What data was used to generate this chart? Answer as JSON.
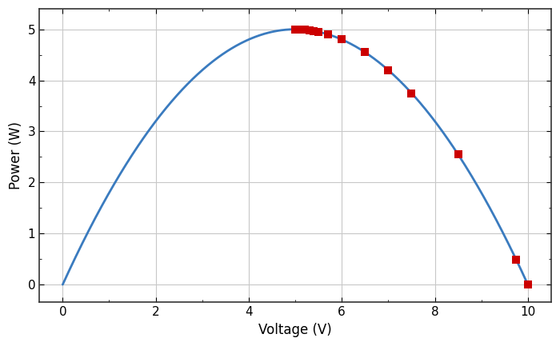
{
  "title": "",
  "xlabel": "Voltage (V)",
  "ylabel": "Power (W)",
  "xlim": [
    -0.5,
    10.5
  ],
  "ylim": [
    -0.35,
    5.4
  ],
  "xticks": [
    0,
    2,
    4,
    6,
    8,
    10
  ],
  "yticks": [
    0,
    1,
    2,
    3,
    4,
    5
  ],
  "curve_color": "#3a7bbf",
  "curve_lw": 2.0,
  "curve_v_start": 0.0,
  "curve_v_end": 10.0,
  "parabola_a": -0.2,
  "parabola_b": 2.0,
  "parabola_c": 0.0,
  "marker_color": "#cc0000",
  "marker_size": 7,
  "marker_style": "s",
  "red_points_v": [
    5.0,
    5.1,
    5.2,
    5.3,
    5.4,
    5.5,
    5.7,
    6.0,
    6.5,
    7.0,
    7.5,
    8.5,
    9.75,
    10.0
  ],
  "background_color": "#ffffff",
  "grid_color": "#c8c8c8",
  "grid_lw": 0.8,
  "label_fontsize": 12,
  "tick_fontsize": 11,
  "figure_width": 7.0,
  "figure_height": 4.33,
  "spine_color": "#333333",
  "spine_lw": 1.2
}
